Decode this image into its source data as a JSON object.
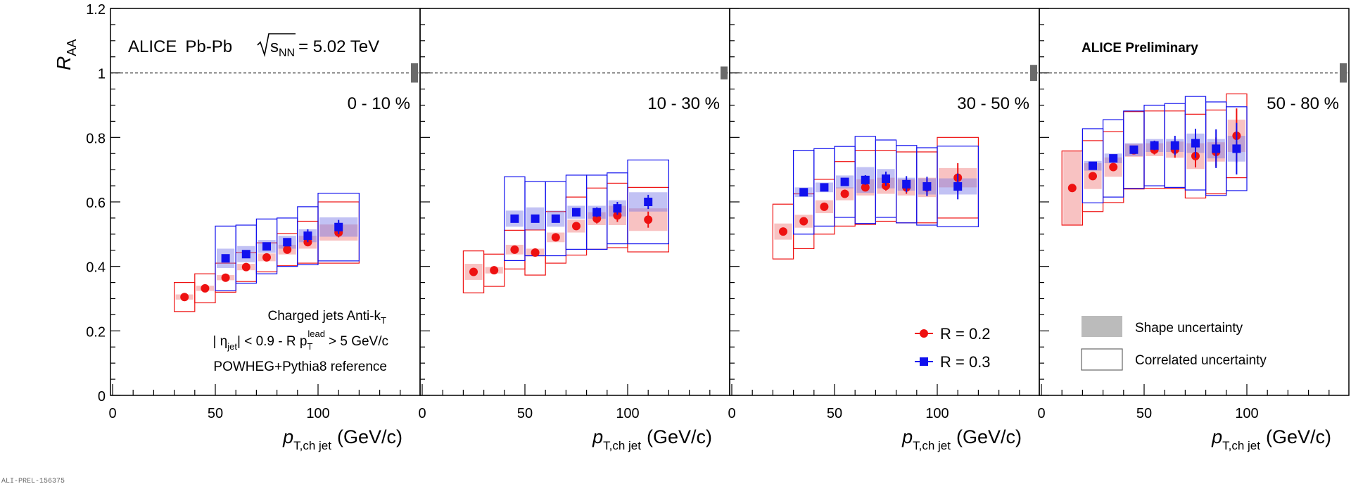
{
  "header": {
    "experiment": "ALICE",
    "system": "Pb-Pb",
    "energy_symbol": "s",
    "energy_sub": "NN",
    "energy_value": "= 5.02 TeV",
    "preliminary": "ALICE Preliminary",
    "watermark": "ALI-PREL-156375"
  },
  "labels": {
    "yaxis_main": "R",
    "yaxis_sub": "AA",
    "xaxis_p": "p",
    "xaxis_sub": "T,ch jet",
    "xaxis_unit": "(GeV/c)",
    "info_line1": "Charged jets  Anti-k",
    "info_line1_sub": "T",
    "info_line2_a": "| η",
    "info_line2_jet": "jet",
    "info_line2_b": "| < 0.9 - R  p",
    "info_line2_T": "T",
    "info_line2_lead": "lead",
    "info_line2_c": "> 5 GeV/c",
    "info_line3": "POWHEG+Pythia8 reference"
  },
  "legend_series": [
    {
      "name": "R = 0.2",
      "color": "#ee1111",
      "marker": "circle"
    },
    {
      "name": "R = 0.3",
      "color": "#1111ee",
      "marker": "square"
    }
  ],
  "legend_uncertainty": [
    {
      "name": "Shape uncertainty",
      "style": "filled",
      "color": "#bbbbbb"
    },
    {
      "name": "Correlated uncertainty",
      "style": "open",
      "color": "#666666"
    }
  ],
  "chart_data": {
    "type": "scatter",
    "ylim": [
      0,
      1.2
    ],
    "xlim": [
      0,
      150
    ],
    "yticks": [
      "0",
      "0.2",
      "0.4",
      "0.6",
      "0.8",
      "1",
      "1.2"
    ],
    "xticks": [
      "0",
      "50",
      "100"
    ],
    "reference_line": 1,
    "panels": [
      {
        "centrality": "0 - 10 %",
        "norm_unc": 0.03,
        "series": [
          {
            "name": "R = 0.2",
            "points": [
              {
                "x": 35,
                "y": 0.305,
                "xw": 5,
                "stat": 0.005,
                "shape": 0.008,
                "corr": 0.045
              },
              {
                "x": 45,
                "y": 0.332,
                "xw": 5,
                "stat": 0.005,
                "shape": 0.008,
                "corr": 0.045
              },
              {
                "x": 55,
                "y": 0.365,
                "xw": 5,
                "stat": 0.005,
                "shape": 0.008,
                "corr": 0.045
              },
              {
                "x": 65,
                "y": 0.398,
                "xw": 5,
                "stat": 0.006,
                "shape": 0.01,
                "corr": 0.045
              },
              {
                "x": 75,
                "y": 0.428,
                "xw": 5,
                "stat": 0.007,
                "shape": 0.012,
                "corr": 0.045
              },
              {
                "x": 85,
                "y": 0.452,
                "xw": 5,
                "stat": 0.008,
                "shape": 0.015,
                "corr": 0.05
              },
              {
                "x": 95,
                "y": 0.475,
                "xw": 5,
                "stat": 0.01,
                "shape": 0.02,
                "corr": 0.065
              },
              {
                "x": 110,
                "y": 0.505,
                "xw": 10,
                "stat": 0.015,
                "shape": 0.025,
                "corr": 0.095
              }
            ]
          },
          {
            "name": "R = 0.3",
            "points": [
              {
                "x": 55,
                "y": 0.425,
                "xw": 5,
                "stat": 0.007,
                "shape": 0.03,
                "corr": 0.1
              },
              {
                "x": 65,
                "y": 0.438,
                "xw": 5,
                "stat": 0.007,
                "shape": 0.025,
                "corr": 0.09
              },
              {
                "x": 75,
                "y": 0.462,
                "xw": 5,
                "stat": 0.008,
                "shape": 0.02,
                "corr": 0.085
              },
              {
                "x": 85,
                "y": 0.475,
                "xw": 5,
                "stat": 0.01,
                "shape": 0.02,
                "corr": 0.075
              },
              {
                "x": 95,
                "y": 0.495,
                "xw": 5,
                "stat": 0.02,
                "shape": 0.02,
                "corr": 0.09
              },
              {
                "x": 110,
                "y": 0.522,
                "xw": 10,
                "stat": 0.022,
                "shape": 0.03,
                "corr": 0.105
              }
            ]
          }
        ]
      },
      {
        "centrality": "10 - 30 %",
        "norm_unc": 0.02,
        "series": [
          {
            "name": "R = 0.2",
            "points": [
              {
                "x": 25,
                "y": 0.383,
                "xw": 5,
                "stat": 0.005,
                "shape": 0.025,
                "corr": 0.065
              },
              {
                "x": 35,
                "y": 0.388,
                "xw": 5,
                "stat": 0.005,
                "shape": 0.01,
                "corr": 0.05
              },
              {
                "x": 45,
                "y": 0.452,
                "xw": 5,
                "stat": 0.006,
                "shape": 0.015,
                "corr": 0.06
              },
              {
                "x": 55,
                "y": 0.443,
                "xw": 5,
                "stat": 0.006,
                "shape": 0.012,
                "corr": 0.07
              },
              {
                "x": 65,
                "y": 0.49,
                "xw": 5,
                "stat": 0.007,
                "shape": 0.015,
                "corr": 0.08
              },
              {
                "x": 75,
                "y": 0.525,
                "xw": 5,
                "stat": 0.01,
                "shape": 0.02,
                "corr": 0.09
              },
              {
                "x": 85,
                "y": 0.548,
                "xw": 5,
                "stat": 0.015,
                "shape": 0.02,
                "corr": 0.095
              },
              {
                "x": 95,
                "y": 0.558,
                "xw": 5,
                "stat": 0.02,
                "shape": 0.03,
                "corr": 0.1
              },
              {
                "x": 110,
                "y": 0.545,
                "xw": 10,
                "stat": 0.025,
                "shape": 0.035,
                "corr": 0.1
              }
            ]
          },
          {
            "name": "R = 0.3",
            "points": [
              {
                "x": 45,
                "y": 0.548,
                "xw": 5,
                "stat": 0.007,
                "shape": 0.025,
                "corr": 0.13
              },
              {
                "x": 55,
                "y": 0.548,
                "xw": 5,
                "stat": 0.007,
                "shape": 0.035,
                "corr": 0.115
              },
              {
                "x": 65,
                "y": 0.548,
                "xw": 5,
                "stat": 0.008,
                "shape": 0.025,
                "corr": 0.115
              },
              {
                "x": 75,
                "y": 0.568,
                "xw": 5,
                "stat": 0.01,
                "shape": 0.02,
                "corr": 0.115
              },
              {
                "x": 85,
                "y": 0.568,
                "xw": 5,
                "stat": 0.015,
                "shape": 0.02,
                "corr": 0.115
              },
              {
                "x": 95,
                "y": 0.58,
                "xw": 5,
                "stat": 0.02,
                "shape": 0.025,
                "corr": 0.11
              },
              {
                "x": 110,
                "y": 0.6,
                "xw": 10,
                "stat": 0.022,
                "shape": 0.03,
                "corr": 0.13
              }
            ]
          }
        ]
      },
      {
        "centrality": "30 - 50 %",
        "norm_unc": 0.025,
        "series": [
          {
            "name": "R = 0.2",
            "points": [
              {
                "x": 25,
                "y": 0.508,
                "xw": 5,
                "stat": 0.005,
                "shape": 0.025,
                "corr": 0.085
              },
              {
                "x": 35,
                "y": 0.54,
                "xw": 5,
                "stat": 0.006,
                "shape": 0.02,
                "corr": 0.085
              },
              {
                "x": 45,
                "y": 0.585,
                "xw": 5,
                "stat": 0.007,
                "shape": 0.02,
                "corr": 0.085
              },
              {
                "x": 55,
                "y": 0.625,
                "xw": 5,
                "stat": 0.008,
                "shape": 0.02,
                "corr": 0.1
              },
              {
                "x": 65,
                "y": 0.645,
                "xw": 5,
                "stat": 0.01,
                "shape": 0.025,
                "corr": 0.115
              },
              {
                "x": 75,
                "y": 0.65,
                "xw": 5,
                "stat": 0.015,
                "shape": 0.025,
                "corr": 0.11
              },
              {
                "x": 85,
                "y": 0.645,
                "xw": 5,
                "stat": 0.02,
                "shape": 0.025,
                "corr": 0.11
              },
              {
                "x": 95,
                "y": 0.645,
                "xw": 5,
                "stat": 0.025,
                "shape": 0.03,
                "corr": 0.11
              },
              {
                "x": 110,
                "y": 0.675,
                "xw": 10,
                "stat": 0.045,
                "shape": 0.03,
                "corr": 0.125
              }
            ]
          },
          {
            "name": "R = 0.3",
            "points": [
              {
                "x": 35,
                "y": 0.63,
                "xw": 5,
                "stat": 0.008,
                "shape": 0.015,
                "corr": 0.13
              },
              {
                "x": 45,
                "y": 0.645,
                "xw": 5,
                "stat": 0.008,
                "shape": 0.015,
                "corr": 0.12
              },
              {
                "x": 55,
                "y": 0.662,
                "xw": 5,
                "stat": 0.009,
                "shape": 0.02,
                "corr": 0.11
              },
              {
                "x": 65,
                "y": 0.668,
                "xw": 5,
                "stat": 0.015,
                "shape": 0.04,
                "corr": 0.135
              },
              {
                "x": 75,
                "y": 0.672,
                "xw": 5,
                "stat": 0.022,
                "shape": 0.03,
                "corr": 0.12
              },
              {
                "x": 85,
                "y": 0.655,
                "xw": 5,
                "stat": 0.025,
                "shape": 0.02,
                "corr": 0.12
              },
              {
                "x": 95,
                "y": 0.648,
                "xw": 5,
                "stat": 0.03,
                "shape": 0.025,
                "corr": 0.12
              },
              {
                "x": 110,
                "y": 0.648,
                "xw": 10,
                "stat": 0.04,
                "shape": 0.025,
                "corr": 0.125
              }
            ]
          }
        ]
      },
      {
        "centrality": "50 - 80 %",
        "norm_unc": 0.03,
        "series": [
          {
            "name": "R = 0.2",
            "points": [
              {
                "x": 15,
                "y": 0.643,
                "xw": 5,
                "stat": 0.005,
                "shape": 0.115,
                "corr": 0.115
              },
              {
                "x": 25,
                "y": 0.68,
                "xw": 5,
                "stat": 0.007,
                "shape": 0.04,
                "corr": 0.11
              },
              {
                "x": 35,
                "y": 0.708,
                "xw": 5,
                "stat": 0.008,
                "shape": 0.03,
                "corr": 0.11
              },
              {
                "x": 45,
                "y": 0.76,
                "xw": 5,
                "stat": 0.01,
                "shape": 0.02,
                "corr": 0.12
              },
              {
                "x": 55,
                "y": 0.762,
                "xw": 5,
                "stat": 0.015,
                "shape": 0.02,
                "corr": 0.12
              },
              {
                "x": 65,
                "y": 0.762,
                "xw": 5,
                "stat": 0.025,
                "shape": 0.025,
                "corr": 0.12
              },
              {
                "x": 75,
                "y": 0.742,
                "xw": 5,
                "stat": 0.035,
                "shape": 0.04,
                "corr": 0.13
              },
              {
                "x": 85,
                "y": 0.755,
                "xw": 5,
                "stat": 0.045,
                "shape": 0.03,
                "corr": 0.13
              },
              {
                "x": 95,
                "y": 0.805,
                "xw": 5,
                "stat": 0.085,
                "shape": 0.05,
                "corr": 0.13
              }
            ]
          },
          {
            "name": "R = 0.3",
            "points": [
              {
                "x": 25,
                "y": 0.712,
                "xw": 5,
                "stat": 0.007,
                "shape": 0.015,
                "corr": 0.115
              },
              {
                "x": 35,
                "y": 0.735,
                "xw": 5,
                "stat": 0.008,
                "shape": 0.015,
                "corr": 0.12
              },
              {
                "x": 45,
                "y": 0.762,
                "xw": 5,
                "stat": 0.01,
                "shape": 0.02,
                "corr": 0.12
              },
              {
                "x": 55,
                "y": 0.775,
                "xw": 5,
                "stat": 0.015,
                "shape": 0.02,
                "corr": 0.125
              },
              {
                "x": 65,
                "y": 0.775,
                "xw": 5,
                "stat": 0.03,
                "shape": 0.02,
                "corr": 0.13
              },
              {
                "x": 75,
                "y": 0.782,
                "xw": 5,
                "stat": 0.045,
                "shape": 0.03,
                "corr": 0.145
              },
              {
                "x": 85,
                "y": 0.765,
                "xw": 5,
                "stat": 0.06,
                "shape": 0.03,
                "corr": 0.145
              },
              {
                "x": 95,
                "y": 0.765,
                "xw": 5,
                "stat": 0.08,
                "shape": 0.04,
                "corr": 0.13
              }
            ]
          }
        ]
      }
    ]
  }
}
